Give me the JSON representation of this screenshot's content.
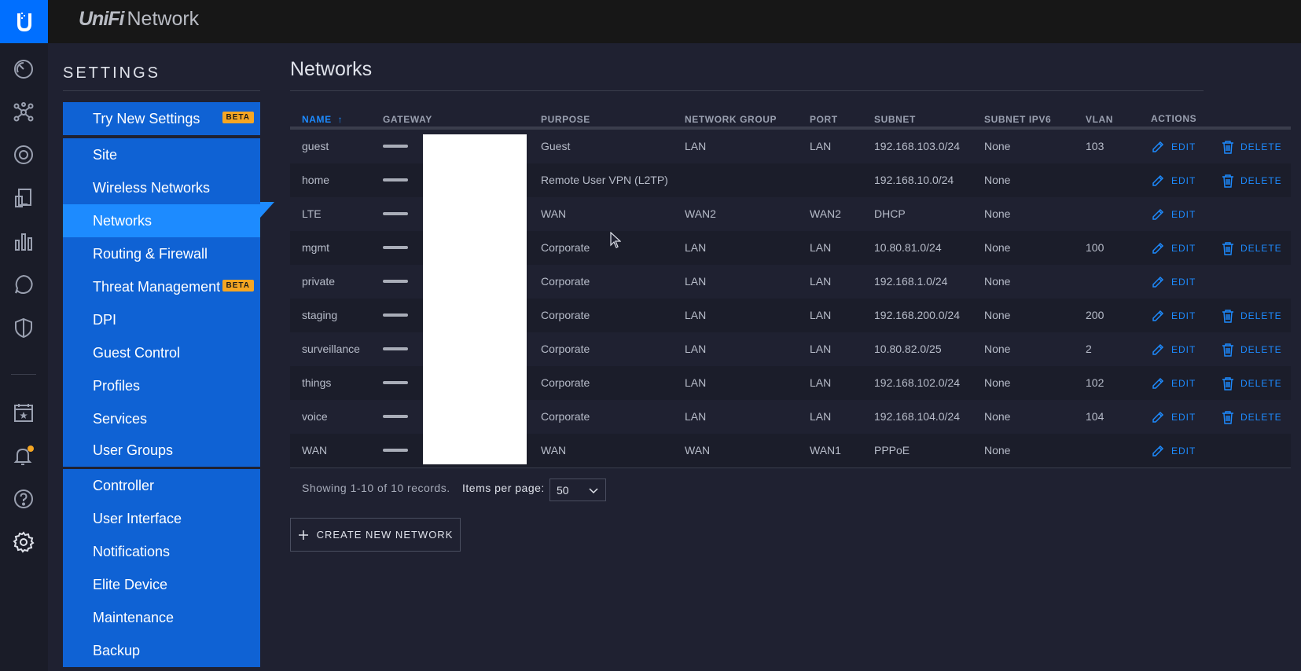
{
  "brand": {
    "unifi": "UniFi",
    "product": "Network"
  },
  "settings": {
    "title": "SETTINGS",
    "try_new": {
      "label": "Try New Settings",
      "badge": "BETA"
    },
    "group1": [
      {
        "label": "Site"
      },
      {
        "label": "Wireless Networks"
      },
      {
        "label": "Networks",
        "active": true
      },
      {
        "label": "Routing & Firewall"
      },
      {
        "label": "Threat Management",
        "badge": "BETA"
      },
      {
        "label": "DPI"
      },
      {
        "label": "Guest Control"
      },
      {
        "label": "Profiles"
      },
      {
        "label": "Services"
      },
      {
        "label": "User Groups"
      }
    ],
    "group2": [
      {
        "label": "Controller"
      },
      {
        "label": "User Interface"
      },
      {
        "label": "Notifications"
      },
      {
        "label": "Elite Device"
      },
      {
        "label": "Maintenance"
      },
      {
        "label": "Backup"
      }
    ]
  },
  "main": {
    "title": "Networks",
    "columns": {
      "name": "NAME",
      "gateway": "GATEWAY",
      "purpose": "PURPOSE",
      "network_group": "NETWORK GROUP",
      "port": "PORT",
      "subnet": "SUBNET",
      "subnet_ipv6": "SUBNET IPV6",
      "vlan": "VLAN",
      "actions": "ACTIONS"
    },
    "edit_label": "EDIT",
    "delete_label": "DELETE",
    "rows": [
      {
        "name": "guest",
        "purpose": "Guest",
        "group": "LAN",
        "port": "LAN",
        "subnet": "192.168.103.0/24",
        "ipv6": "None",
        "vlan": "103",
        "deletable": true
      },
      {
        "name": "home",
        "purpose": "Remote User VPN (L2TP)",
        "group": "",
        "port": "",
        "subnet": "192.168.10.0/24",
        "ipv6": "None",
        "vlan": "",
        "deletable": true
      },
      {
        "name": "LTE",
        "purpose": "WAN",
        "group": "WAN2",
        "port": "WAN2",
        "subnet": "DHCP",
        "ipv6": "None",
        "vlan": "",
        "deletable": false
      },
      {
        "name": "mgmt",
        "purpose": "Corporate",
        "group": "LAN",
        "port": "LAN",
        "subnet": "10.80.81.0/24",
        "ipv6": "None",
        "vlan": "100",
        "deletable": true
      },
      {
        "name": "private",
        "purpose": "Corporate",
        "group": "LAN",
        "port": "LAN",
        "subnet": "192.168.1.0/24",
        "ipv6": "None",
        "vlan": "",
        "deletable": false
      },
      {
        "name": "staging",
        "purpose": "Corporate",
        "group": "LAN",
        "port": "LAN",
        "subnet": "192.168.200.0/24",
        "ipv6": "None",
        "vlan": "200",
        "deletable": true
      },
      {
        "name": "surveillance",
        "purpose": "Corporate",
        "group": "LAN",
        "port": "LAN",
        "subnet": "10.80.82.0/25",
        "ipv6": "None",
        "vlan": "2",
        "deletable": true
      },
      {
        "name": "things",
        "purpose": "Corporate",
        "group": "LAN",
        "port": "LAN",
        "subnet": "192.168.102.0/24",
        "ipv6": "None",
        "vlan": "102",
        "deletable": true
      },
      {
        "name": "voice",
        "purpose": "Corporate",
        "group": "LAN",
        "port": "LAN",
        "subnet": "192.168.104.0/24",
        "ipv6": "None",
        "vlan": "104",
        "deletable": true
      },
      {
        "name": "WAN",
        "purpose": "WAN",
        "group": "WAN",
        "port": "WAN1",
        "subnet": "PPPoE",
        "ipv6": "None",
        "vlan": "",
        "deletable": false
      }
    ],
    "pagination": {
      "showing": "Showing 1-10 of 10 records.",
      "items_per_page_label": "Items per page:",
      "items_per_page_value": "50"
    },
    "create_button": "CREATE NEW NETWORK"
  },
  "colors": {
    "accent": "#1d8bff",
    "menu_bg": "#0f62d4",
    "beta_badge": "#f5a623",
    "notification_dot": "#f5a623"
  }
}
